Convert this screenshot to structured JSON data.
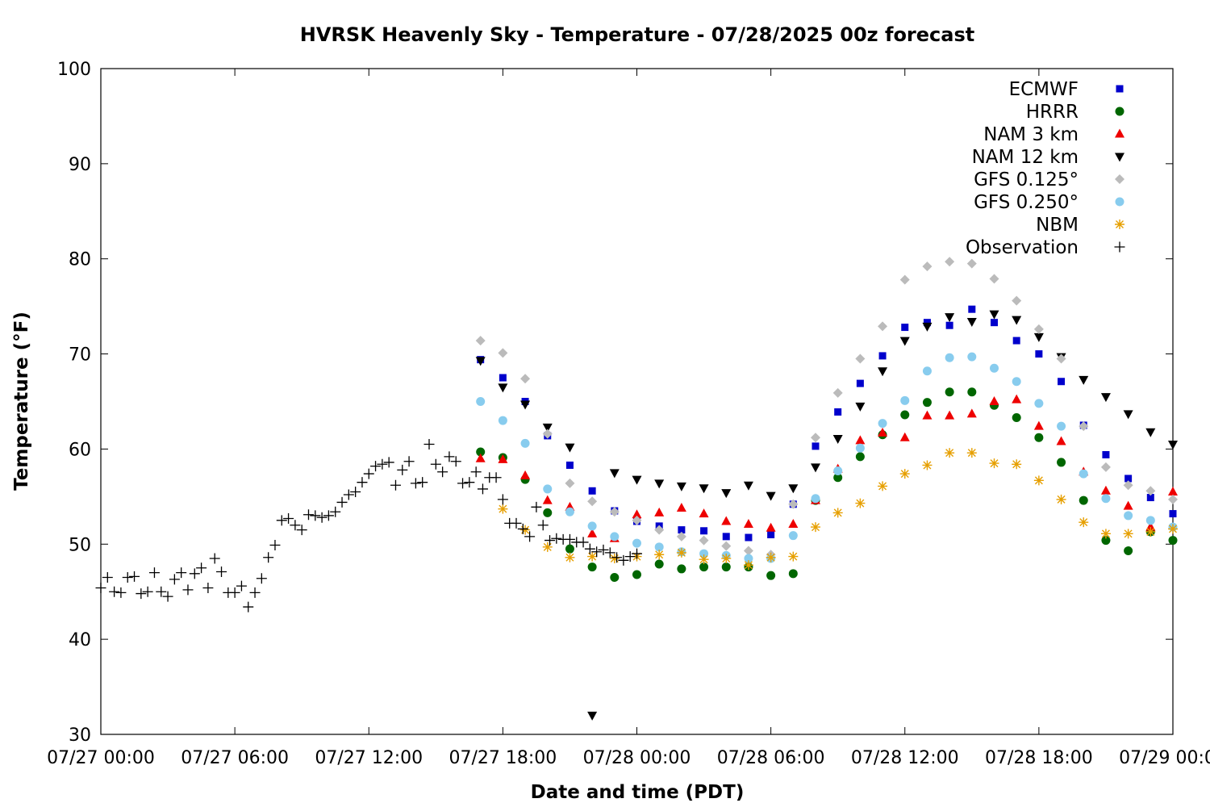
{
  "chart_data": {
    "type": "scatter",
    "title": "HVRSK Heavenly Sky - Temperature - 07/28/2025 00z forecast",
    "xlabel": "Date and time (PDT)",
    "ylabel": "Temperature (°F)",
    "x_units": "hours since 07/27 00:00 PDT",
    "xlim": [
      0,
      48
    ],
    "ylim": [
      30,
      100
    ],
    "x_ticks": [
      {
        "value": 0,
        "label": "07/27 00:00"
      },
      {
        "value": 6,
        "label": "07/27 06:00"
      },
      {
        "value": 12,
        "label": "07/27 12:00"
      },
      {
        "value": 18,
        "label": "07/27 18:00"
      },
      {
        "value": 24,
        "label": "07/28 00:00"
      },
      {
        "value": 30,
        "label": "07/28 06:00"
      },
      {
        "value": 36,
        "label": "07/28 12:00"
      },
      {
        "value": 42,
        "label": "07/28 18:00"
      },
      {
        "value": 48,
        "label": "07/29 00:00"
      }
    ],
    "y_ticks": [
      {
        "value": 30,
        "label": "30"
      },
      {
        "value": 40,
        "label": "40"
      },
      {
        "value": 50,
        "label": "50"
      },
      {
        "value": 60,
        "label": "60"
      },
      {
        "value": 70,
        "label": "70"
      },
      {
        "value": 80,
        "label": "80"
      },
      {
        "value": 90,
        "label": "90"
      },
      {
        "value": 100,
        "label": "100"
      }
    ],
    "grid": false,
    "legend_position": "top-right",
    "series": [
      {
        "name": "ECMWF",
        "color": "#0000cc",
        "marker": "square",
        "x": [
          17,
          18,
          19,
          20,
          21,
          22,
          23,
          24,
          25,
          26,
          27,
          28,
          29,
          30,
          31,
          32,
          33,
          34,
          35,
          36,
          37,
          38,
          39,
          40,
          41,
          42,
          43,
          44,
          45,
          46,
          47,
          48
        ],
        "y": [
          69.4,
          67.5,
          65.0,
          61.4,
          58.3,
          55.6,
          53.5,
          52.4,
          51.9,
          51.5,
          51.4,
          50.8,
          50.7,
          51.0,
          54.2,
          60.3,
          63.9,
          66.9,
          69.8,
          72.8,
          73.3,
          73.0,
          74.7,
          73.3,
          71.4,
          70.0,
          67.1,
          62.5,
          59.4,
          56.9,
          54.9,
          53.2
        ]
      },
      {
        "name": "HRRR",
        "color": "#006600",
        "marker": "circle",
        "x": [
          17,
          18,
          19,
          20,
          21,
          22,
          23,
          24,
          25,
          26,
          27,
          28,
          29,
          30,
          31,
          32,
          33,
          34,
          35,
          36,
          37,
          38,
          39,
          40,
          41,
          42,
          43,
          44,
          45,
          46,
          47,
          48
        ],
        "y": [
          59.7,
          59.1,
          56.8,
          53.3,
          49.5,
          47.6,
          46.5,
          46.8,
          47.9,
          47.4,
          47.6,
          47.6,
          47.6,
          46.7,
          46.9,
          54.6,
          57.0,
          59.2,
          61.5,
          63.6,
          64.9,
          66.0,
          66.0,
          64.6,
          63.3,
          61.2,
          58.6,
          54.6,
          50.4,
          49.3,
          51.3,
          50.4
        ]
      },
      {
        "name": "NAM 3 km",
        "color": "#ee0000",
        "marker": "triangle-up",
        "x": [
          17,
          18,
          19,
          20,
          21,
          22,
          23,
          24,
          25,
          26,
          27,
          28,
          29,
          30,
          31,
          32,
          33,
          34,
          35,
          36,
          37,
          38,
          39,
          40,
          41,
          42,
          43,
          44,
          45,
          46,
          47,
          48
        ],
        "y": [
          59.0,
          58.9,
          57.2,
          54.6,
          53.9,
          51.1,
          50.6,
          53.1,
          53.3,
          53.8,
          53.2,
          52.4,
          52.1,
          51.7,
          52.1,
          54.6,
          57.9,
          60.9,
          61.7,
          61.2,
          63.5,
          63.5,
          63.7,
          65.0,
          65.2,
          62.4,
          60.8,
          57.6,
          55.6,
          54.0,
          51.8,
          55.5
        ]
      },
      {
        "name": "NAM 12 km",
        "color": "#000000",
        "marker": "triangle-down",
        "x": [
          17,
          18,
          19,
          20,
          21,
          22,
          23,
          24,
          25,
          26,
          27,
          28,
          29,
          30,
          31,
          32,
          33,
          34,
          35,
          36,
          37,
          38,
          39,
          40,
          41,
          42,
          43,
          44,
          45,
          46,
          47,
          48
        ],
        "y": [
          69.3,
          66.5,
          64.7,
          62.3,
          60.2,
          32.0,
          57.5,
          56.8,
          56.4,
          56.1,
          55.9,
          55.4,
          56.2,
          55.1,
          55.9,
          58.1,
          61.1,
          64.5,
          68.2,
          71.4,
          72.9,
          73.9,
          73.4,
          74.2,
          73.6,
          71.8,
          69.7,
          67.3,
          65.5,
          63.7,
          61.8,
          60.5
        ]
      },
      {
        "name": "GFS 0.125°",
        "color": "#bbbbbb",
        "marker": "diamond",
        "x": [
          17,
          18,
          19,
          20,
          21,
          22,
          23,
          24,
          25,
          26,
          27,
          28,
          29,
          30,
          31,
          32,
          33,
          34,
          35,
          36,
          37,
          38,
          39,
          40,
          41,
          42,
          43,
          44,
          45,
          46,
          47,
          48
        ],
        "y": [
          71.4,
          70.1,
          67.4,
          61.6,
          56.4,
          54.5,
          53.4,
          52.5,
          51.5,
          50.8,
          50.4,
          49.8,
          49.3,
          48.9,
          54.2,
          61.2,
          65.9,
          69.5,
          72.9,
          77.8,
          79.2,
          79.7,
          79.5,
          77.9,
          75.6,
          72.6,
          69.5,
          62.4,
          58.1,
          56.2,
          55.6,
          54.7
        ]
      },
      {
        "name": "GFS 0.250°",
        "color": "#88ccee",
        "marker": "circle",
        "x": [
          17,
          18,
          19,
          20,
          21,
          22,
          23,
          24,
          25,
          26,
          27,
          28,
          29,
          30,
          31,
          32,
          33,
          34,
          35,
          36,
          37,
          38,
          39,
          40,
          41,
          42,
          43,
          44,
          45,
          46,
          47,
          48
        ],
        "y": [
          65.0,
          63.0,
          60.6,
          55.8,
          53.4,
          51.9,
          50.8,
          50.1,
          49.7,
          49.2,
          49.0,
          48.8,
          48.5,
          48.5,
          50.9,
          54.8,
          57.7,
          60.1,
          62.7,
          65.1,
          68.2,
          69.6,
          69.7,
          68.5,
          67.1,
          64.8,
          62.4,
          57.4,
          54.8,
          53.0,
          52.5,
          51.8
        ]
      },
      {
        "name": "NBM",
        "color": "#e69f00",
        "marker": "star",
        "x": [
          18,
          19,
          20,
          21,
          22,
          23,
          24,
          25,
          26,
          27,
          28,
          29,
          30,
          31,
          32,
          33,
          34,
          35,
          36,
          37,
          38,
          39,
          40,
          41,
          42,
          43,
          44,
          45,
          46,
          47,
          48
        ],
        "y": [
          53.7,
          51.5,
          49.7,
          48.6,
          48.7,
          48.5,
          48.7,
          48.9,
          49.1,
          48.4,
          48.5,
          47.8,
          48.6,
          48.7,
          51.8,
          53.3,
          54.3,
          56.1,
          57.4,
          58.3,
          59.6,
          59.6,
          58.5,
          58.4,
          56.7,
          54.7,
          52.3,
          51.1,
          51.1,
          51.3,
          51.6
        ]
      },
      {
        "name": "Observation",
        "color": "#000000",
        "marker": "plus",
        "x": [
          0.0,
          0.3,
          0.6,
          0.9,
          1.2,
          1.5,
          1.8,
          2.1,
          2.4,
          2.7,
          3.0,
          3.3,
          3.6,
          3.9,
          4.2,
          4.5,
          4.8,
          5.1,
          5.4,
          5.7,
          6.0,
          6.3,
          6.6,
          6.9,
          7.2,
          7.5,
          7.8,
          8.1,
          8.4,
          8.7,
          9.0,
          9.3,
          9.6,
          9.9,
          10.2,
          10.5,
          10.8,
          11.1,
          11.4,
          11.7,
          12.0,
          12.3,
          12.6,
          12.9,
          13.2,
          13.5,
          13.8,
          14.1,
          14.4,
          14.7,
          15.0,
          15.3,
          15.6,
          15.9,
          16.2,
          16.5,
          16.8,
          17.1,
          17.4,
          17.7,
          18.0,
          18.3,
          18.6,
          18.9,
          19.2,
          19.5,
          19.8,
          20.1,
          20.4,
          20.7,
          21.0,
          21.3,
          21.6,
          21.9,
          22.2,
          22.5,
          22.8,
          23.1,
          23.4,
          23.7,
          24.0
        ],
        "y": [
          45.4,
          46.5,
          45.0,
          44.9,
          46.5,
          46.6,
          44.8,
          45.0,
          47.0,
          45.0,
          44.5,
          46.3,
          47.0,
          45.2,
          46.9,
          47.5,
          45.4,
          48.5,
          47.1,
          44.9,
          44.9,
          45.6,
          43.4,
          44.9,
          46.4,
          48.6,
          49.9,
          52.5,
          52.7,
          52.0,
          51.5,
          53.1,
          53.0,
          52.8,
          53.0,
          53.4,
          54.4,
          55.2,
          55.5,
          56.5,
          57.4,
          58.2,
          58.4,
          58.6,
          56.2,
          57.8,
          58.7,
          56.4,
          56.5,
          60.5,
          58.4,
          57.6,
          59.2,
          58.7,
          56.4,
          56.5,
          57.6,
          55.8,
          57.0,
          57.0,
          54.7,
          52.2,
          52.2,
          51.6,
          50.8,
          53.9,
          52.0,
          50.4,
          50.6,
          50.5,
          50.5,
          50.2,
          50.2,
          49.5,
          49.2,
          49.4,
          49.1,
          48.6,
          48.3,
          48.7,
          49.0
        ]
      }
    ]
  }
}
